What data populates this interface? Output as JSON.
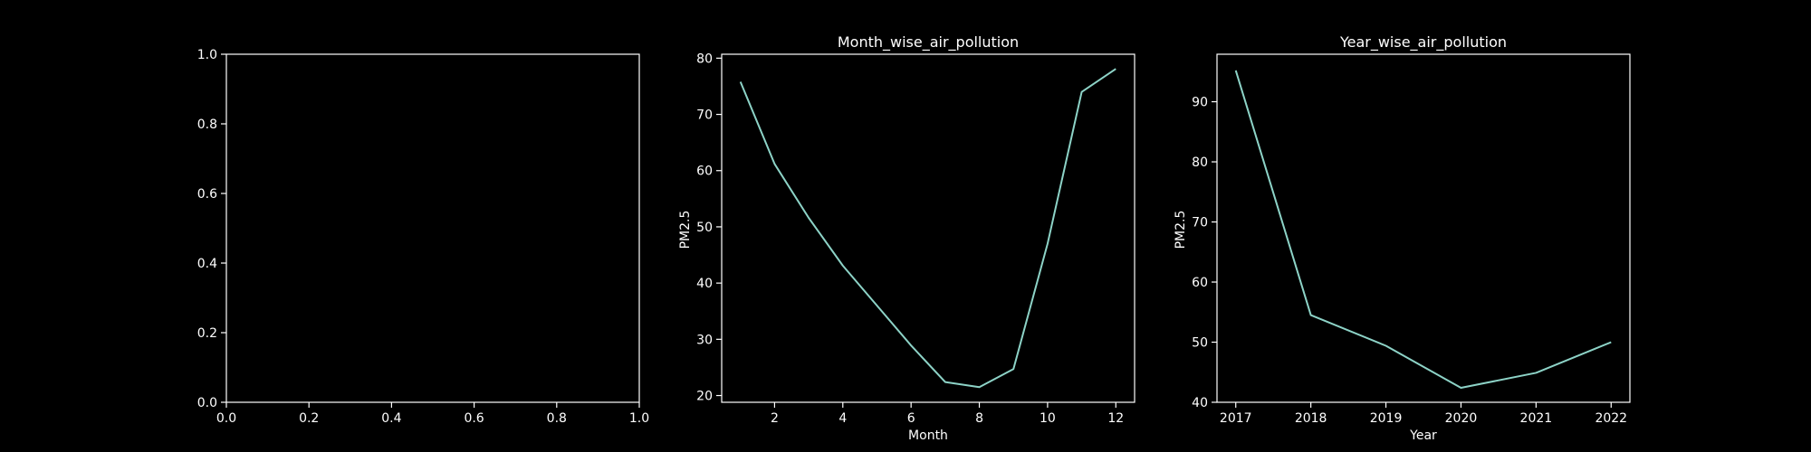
{
  "colors": {
    "background": "#000000",
    "axes": "#ffffff",
    "text": "#ffffff",
    "line": "#8dd3c7"
  },
  "chart_data": [
    {
      "type": "line",
      "title": "",
      "xlabel": "",
      "ylabel": "",
      "xlim": [
        0,
        1
      ],
      "ylim": [
        0,
        1
      ],
      "xticks": [
        0.0,
        0.2,
        0.4,
        0.6,
        0.8,
        1.0
      ],
      "yticks": [
        0.0,
        0.2,
        0.4,
        0.6,
        0.8,
        1.0
      ],
      "xtick_labels": [
        "0.0",
        "0.2",
        "0.4",
        "0.6",
        "0.8",
        "1.0"
      ],
      "ytick_labels": [
        "0.0",
        "0.2",
        "0.4",
        "0.6",
        "0.8",
        "1.0"
      ],
      "x": [],
      "series": [],
      "grid": false,
      "legend": "none"
    },
    {
      "type": "line",
      "title": "Month_wise_air_pollution",
      "xlabel": "Month",
      "ylabel": "PM2.5",
      "xlim": [
        0.45,
        12.55
      ],
      "ylim": [
        18.8,
        80.7
      ],
      "xticks": [
        2,
        4,
        6,
        8,
        10,
        12
      ],
      "yticks": [
        20,
        30,
        40,
        50,
        60,
        70,
        80
      ],
      "xtick_labels": [
        "2",
        "4",
        "6",
        "8",
        "10",
        "12"
      ],
      "ytick_labels": [
        "20",
        "30",
        "40",
        "50",
        "60",
        "70",
        "80"
      ],
      "x": [
        1,
        2,
        3,
        4,
        5,
        6,
        7,
        8,
        9,
        10,
        11,
        12
      ],
      "series": [
        {
          "values": [
            75.8,
            61.2,
            51.6,
            43.1,
            36.0,
            28.9,
            22.4,
            21.5,
            24.7,
            47.0,
            74.0,
            78.1
          ]
        }
      ],
      "grid": false,
      "legend": "none"
    },
    {
      "type": "line",
      "title": "Year_wise_air_pollution",
      "xlabel": "Year",
      "ylabel": "PM2.5",
      "xlim": [
        2016.75,
        2022.25
      ],
      "ylim": [
        40.0,
        97.9
      ],
      "xticks": [
        2017,
        2018,
        2019,
        2020,
        2021,
        2022
      ],
      "yticks": [
        40,
        50,
        60,
        70,
        80,
        90
      ],
      "xtick_labels": [
        "2017",
        "2018",
        "2019",
        "2020",
        "2021",
        "2022"
      ],
      "ytick_labels": [
        "40",
        "50",
        "60",
        "70",
        "80",
        "90"
      ],
      "x": [
        2017,
        2018,
        2019,
        2020,
        2021,
        2022
      ],
      "series": [
        {
          "values": [
            95.2,
            54.5,
            49.4,
            42.4,
            44.9,
            50.0
          ]
        }
      ],
      "grid": false,
      "legend": "none"
    }
  ]
}
